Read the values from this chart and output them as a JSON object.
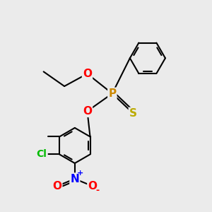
{
  "background_color": "#ebebeb",
  "bond_color": "#000000",
  "atom_colors": {
    "O": "#ff0000",
    "P": "#cc8800",
    "S": "#bbaa00",
    "Cl": "#00bb00",
    "N": "#0000ff",
    "C": "#000000"
  },
  "font_size_atoms": 11,
  "line_width": 1.5,
  "figsize": [
    3.0,
    3.0
  ],
  "dpi": 100
}
